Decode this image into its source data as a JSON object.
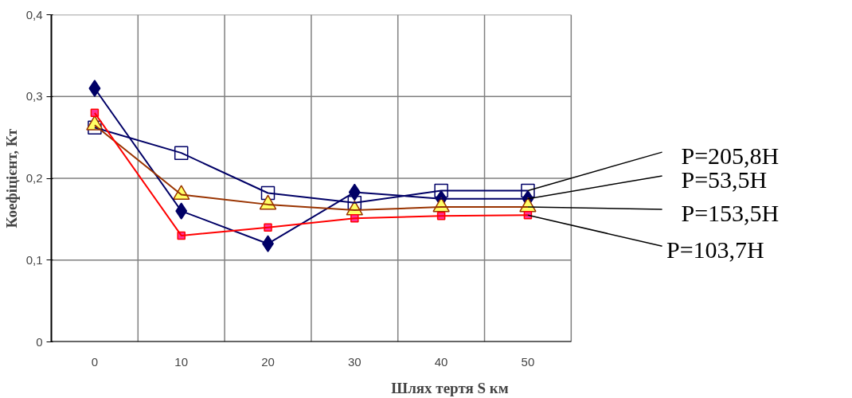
{
  "chart_data": {
    "type": "line",
    "xlabel": "Шлях тертя S км",
    "ylabel": "Коефіцієнт, Кт",
    "categories": [
      "0",
      "10",
      "20",
      "30",
      "40",
      "50"
    ],
    "ylim": [
      0,
      0.4
    ],
    "yticks": [
      0,
      {
        "value": 0.1,
        "label": "0,1"
      },
      {
        "value": 0.2,
        "label": "0,2"
      },
      {
        "value": 0.3,
        "label": "0,3"
      },
      {
        "value": 0.4,
        "label": "0,4"
      }
    ],
    "grid": true,
    "series": [
      {
        "name": "P=205,8H",
        "color": "#000066",
        "marker": "square",
        "values": [
          0.262,
          0.231,
          0.182,
          0.17,
          0.185,
          0.185
        ]
      },
      {
        "name": "P=53,5H",
        "color": "#000066",
        "marker": "diamond",
        "values": [
          0.31,
          0.16,
          0.12,
          0.183,
          0.175,
          0.175
        ]
      },
      {
        "name": "P=153,5H",
        "color": "#993300",
        "marker": "triangle",
        "values": [
          0.265,
          0.18,
          0.168,
          0.161,
          0.165,
          0.165
        ]
      },
      {
        "name": "P=103,7H",
        "color": "#ff0000",
        "marker": "square",
        "values": [
          0.28,
          0.13,
          0.14,
          0.151,
          0.154,
          0.155
        ]
      }
    ]
  }
}
